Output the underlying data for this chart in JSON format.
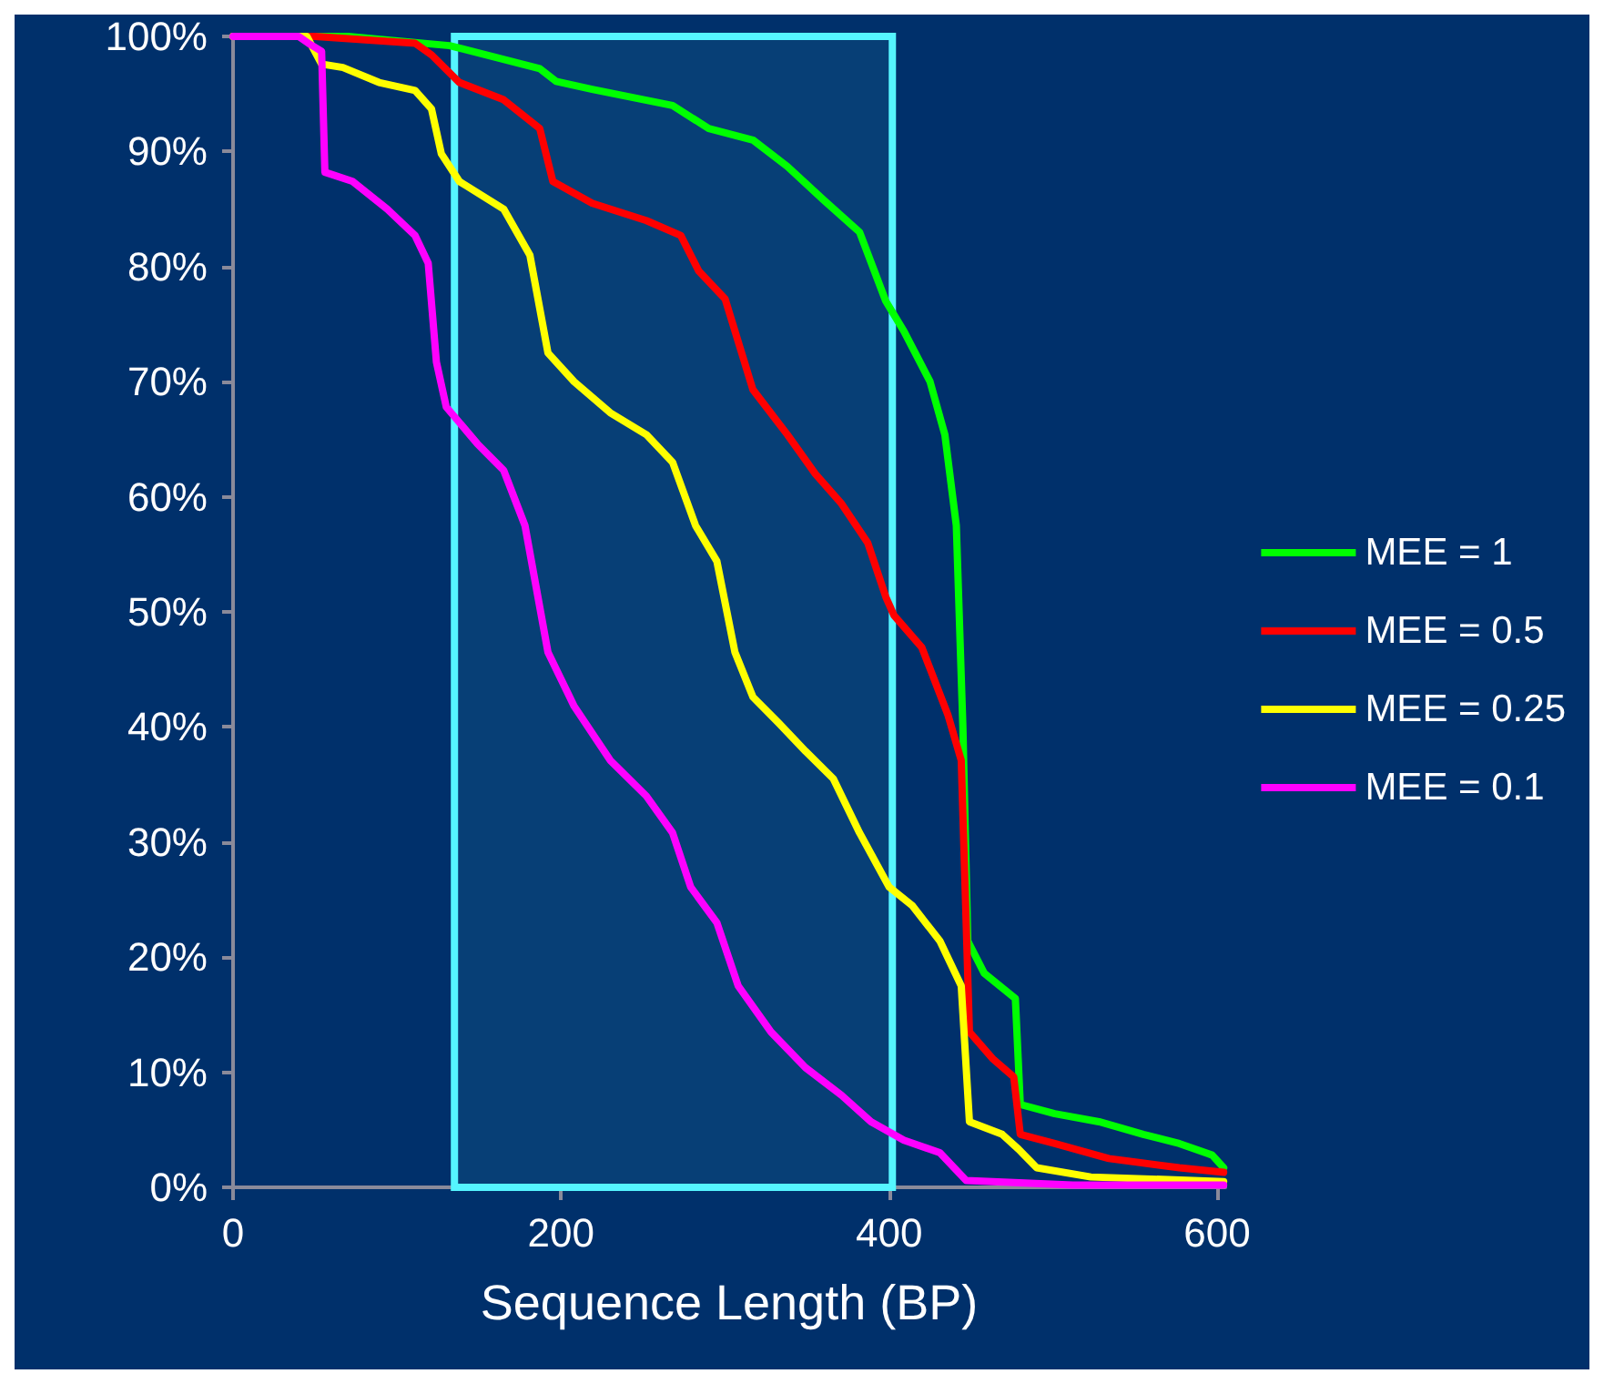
{
  "chart_data": {
    "type": "line",
    "xlabel": "Sequence Length (BP)",
    "xlim": [
      0,
      605
    ],
    "xticks": [
      0,
      200,
      400,
      600
    ],
    "ylim": [
      0,
      100
    ],
    "yticks": [
      {
        "value": 0,
        "label": "0%"
      },
      {
        "value": 10,
        "label": "10%"
      },
      {
        "value": 20,
        "label": "20%"
      },
      {
        "value": 30,
        "label": "30%"
      },
      {
        "value": 40,
        "label": "40%"
      },
      {
        "value": 50,
        "label": "50%"
      },
      {
        "value": 60,
        "label": "60%"
      },
      {
        "value": 70,
        "label": "70%"
      },
      {
        "value": 80,
        "label": "80%"
      },
      {
        "value": 90,
        "label": "90%"
      },
      {
        "value": 100,
        "label": "100%"
      }
    ],
    "grid": false,
    "legend": "right",
    "marker": "none",
    "line_style": "solid",
    "bands": [
      {
        "axis": "x",
        "from": 135,
        "to": 402,
        "color": "#55f5ff"
      }
    ],
    "series": [
      {
        "name": "MEE = 1",
        "color": "#00ff00",
        "x": [
          0,
          70,
          132,
          187,
          197,
          219,
          268,
          290,
          317,
          338,
          360,
          382,
          398,
          409,
          425,
          434,
          441,
          445,
          448,
          458,
          477,
          480,
          501,
          528,
          555,
          577,
          597,
          604
        ],
        "values": [
          100,
          100,
          99.2,
          97.2,
          96.1,
          95.4,
          94,
          92,
          91,
          88.7,
          85.8,
          83,
          77,
          74.4,
          70,
          65.4,
          57.5,
          40,
          21.4,
          18.6,
          16.4,
          7.2,
          6.4,
          5.7,
          4.6,
          3.8,
          2.8,
          1.7
        ]
      },
      {
        "name": "MEE = 0.5",
        "color": "#ff0000",
        "x": [
          0,
          50,
          111,
          121,
          138,
          165,
          187,
          195,
          219,
          252,
          273,
          284,
          300,
          317,
          338,
          355,
          371,
          387,
          398,
          403,
          420,
          436,
          444,
          449,
          463,
          476,
          480,
          501,
          534,
          577,
          604
        ],
        "values": [
          100,
          100,
          99.4,
          98.4,
          96,
          94.5,
          92,
          87.4,
          85.5,
          84,
          82.7,
          79.6,
          77.2,
          69.3,
          65.4,
          62,
          59.4,
          56,
          51.3,
          49.7,
          46.9,
          41,
          37.1,
          13.5,
          11.2,
          9.6,
          4.6,
          3.8,
          2.5,
          1.7,
          1.3
        ]
      },
      {
        "name": "MEE = 0.25",
        "color": "#ffff00",
        "x": [
          0,
          45,
          54,
          67,
          89,
          111,
          121,
          127,
          138,
          165,
          181,
          192,
          208,
          230,
          252,
          268,
          282,
          295,
          306,
          317,
          333,
          349,
          366,
          382,
          400,
          414,
          431,
          444,
          449,
          469,
          479,
          490,
          523,
          604
        ],
        "values": [
          100,
          100,
          97.6,
          97.3,
          96,
          95.3,
          93.7,
          89.8,
          87.4,
          85,
          81,
          72.5,
          70,
          67.3,
          65.4,
          63,
          57.5,
          54.4,
          46.5,
          42.6,
          40.3,
          37.9,
          35.5,
          30.8,
          26.1,
          24.5,
          21.4,
          17.5,
          5.7,
          4.6,
          3.3,
          1.7,
          0.9,
          0.5
        ]
      },
      {
        "name": "MEE = 0.1",
        "color": "#ff00ff",
        "x": [
          0,
          40,
          46,
          54,
          56,
          73,
          94,
          111,
          119,
          124,
          130,
          149,
          165,
          178,
          192,
          208,
          230,
          252,
          268,
          279,
          295,
          308,
          328,
          349,
          371,
          389,
          409,
          431,
          447,
          512,
          604
        ],
        "values": [
          100,
          100,
          99.4,
          98.7,
          88.2,
          87.4,
          85,
          82.7,
          80.3,
          71.7,
          67.8,
          64.6,
          62.3,
          57.5,
          46.5,
          41.8,
          37.1,
          34,
          30.8,
          26.1,
          23,
          17.5,
          13.5,
          10.4,
          8,
          5.7,
          4.1,
          3,
          0.6,
          0.2,
          0.2
        ]
      }
    ]
  }
}
